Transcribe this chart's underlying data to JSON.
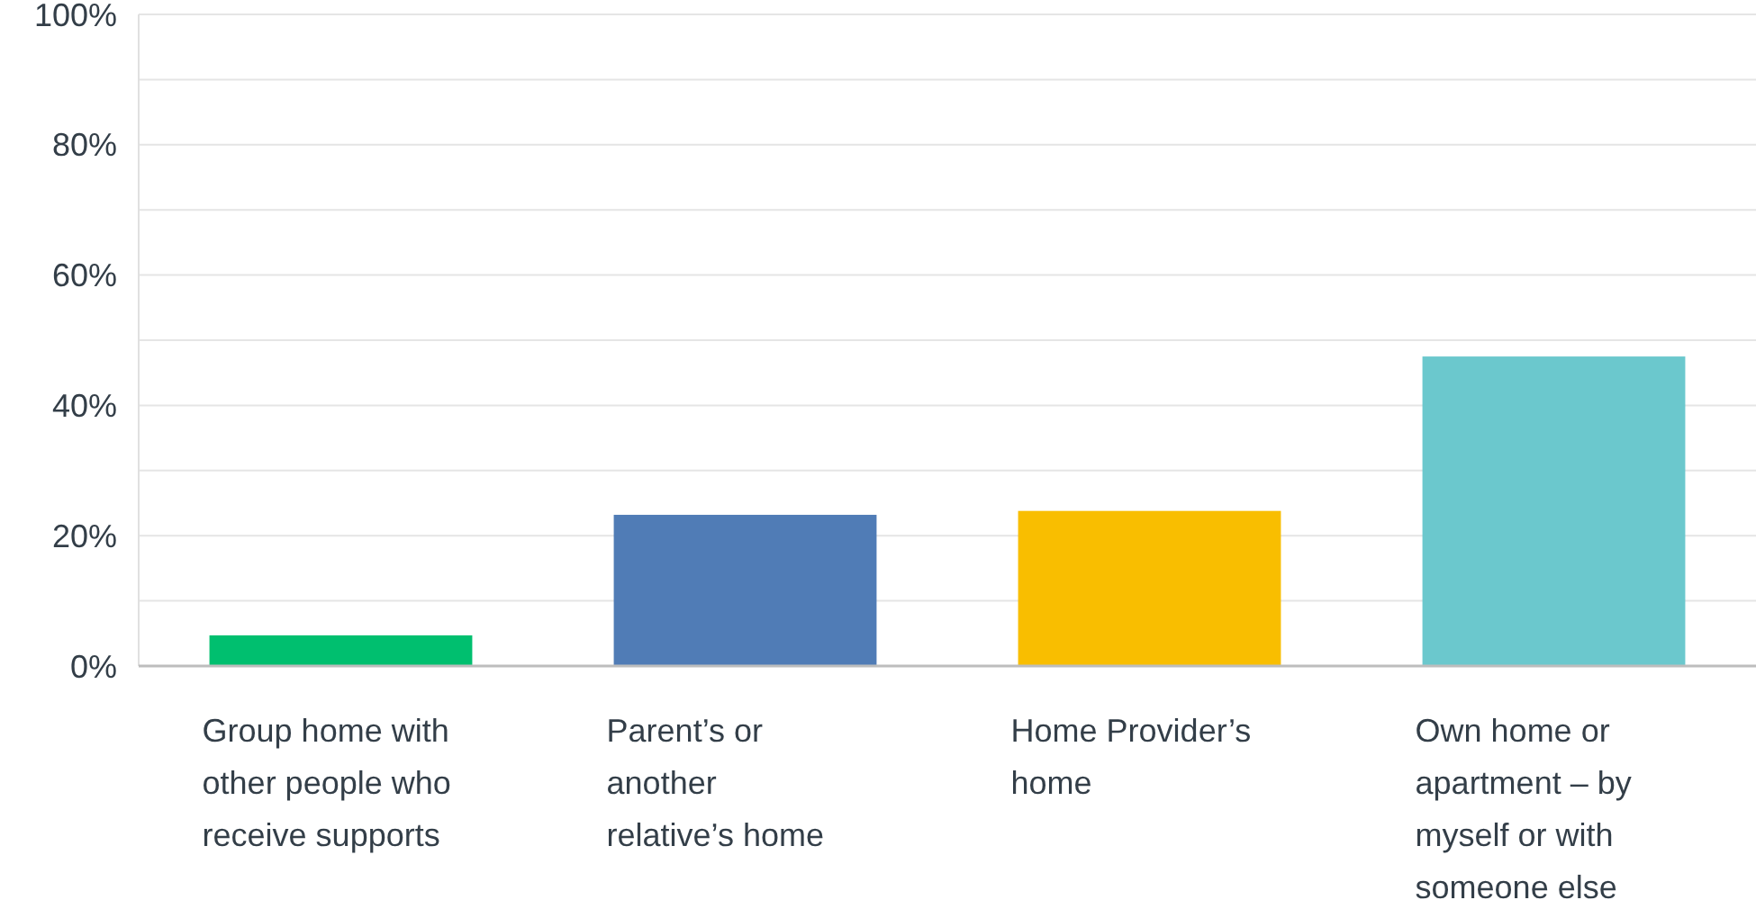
{
  "chart_data": {
    "type": "bar",
    "categories": [
      "Group home with other people who receive supports",
      "Parent’s or another relative’s home",
      "Home Provider’s home",
      "Own home or apartment – by myself or with someone else"
    ],
    "values": [
      4.7,
      23.2,
      23.8,
      47.5
    ],
    "colors": [
      "#00bf6f",
      "#507cb6",
      "#f9be00",
      "#6bc8cd"
    ],
    "ylim": [
      0,
      100
    ],
    "yticks": [
      {
        "value": 0,
        "label": "0%"
      },
      {
        "value": 10,
        "label": null
      },
      {
        "value": 20,
        "label": "20%"
      },
      {
        "value": 30,
        "label": null
      },
      {
        "value": 40,
        "label": "40%"
      },
      {
        "value": 50,
        "label": null
      },
      {
        "value": 60,
        "label": "60%"
      },
      {
        "value": 70,
        "label": null
      },
      {
        "value": 80,
        "label": "80%"
      },
      {
        "value": 90,
        "label": null
      },
      {
        "value": 100,
        "label": "100%"
      }
    ],
    "grid": true
  }
}
